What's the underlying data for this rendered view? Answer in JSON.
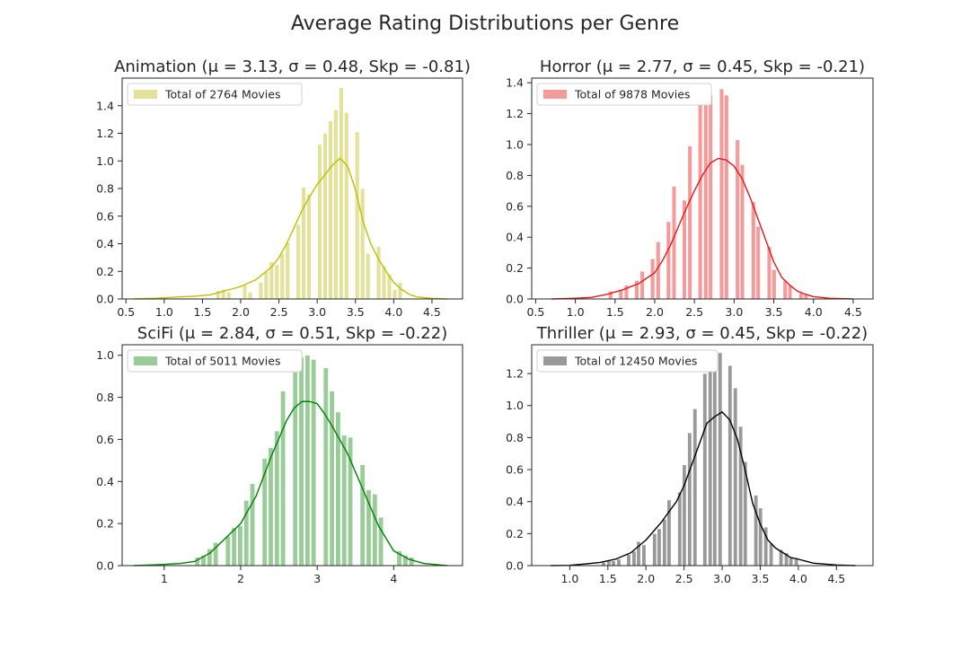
{
  "figure": {
    "title": "Average Rating Distributions per Genre"
  },
  "chart_data": [
    {
      "type": "bar",
      "title": "Animation (μ = 3.13, σ = 0.48, Skp = -0.81)",
      "legend": "Total of 2764 Movies",
      "color": "#bfbf00",
      "bar_color": "#e2e29a",
      "xlim": [
        0.45,
        4.9
      ],
      "ylim": [
        0,
        1.6
      ],
      "xticks": [
        0.5,
        1.0,
        1.5,
        2.0,
        2.5,
        3.0,
        3.5,
        4.0,
        4.5
      ],
      "xtick_labels": [
        "0.5",
        "1.0",
        "1.5",
        "2.0",
        "2.5",
        "3.0",
        "3.5",
        "4.0",
        "4.5"
      ],
      "yticks": [
        0.0,
        0.2,
        0.4,
        0.6,
        0.8,
        1.0,
        1.2,
        1.4
      ],
      "ytick_labels": [
        "0.0",
        "0.2",
        "0.4",
        "0.6",
        "0.8",
        "1.0",
        "1.2",
        "1.4"
      ],
      "bin_width": 0.07,
      "bins": [
        [
          1.71,
          0.06
        ],
        [
          1.78,
          0.07
        ],
        [
          1.85,
          0.05
        ],
        [
          2.06,
          0.1
        ],
        [
          2.13,
          0.05
        ],
        [
          2.27,
          0.12
        ],
        [
          2.34,
          0.2
        ],
        [
          2.41,
          0.27
        ],
        [
          2.48,
          0.25
        ],
        [
          2.55,
          0.33
        ],
        [
          2.62,
          0.41
        ],
        [
          2.76,
          0.54
        ],
        [
          2.83,
          0.81
        ],
        [
          2.9,
          0.76
        ],
        [
          3.04,
          1.12
        ],
        [
          3.11,
          1.2
        ],
        [
          3.18,
          1.29
        ],
        [
          3.25,
          1.37
        ],
        [
          3.32,
          1.53
        ],
        [
          3.39,
          1.35
        ],
        [
          3.53,
          1.21
        ],
        [
          3.6,
          0.8
        ],
        [
          3.67,
          0.33
        ],
        [
          3.81,
          0.38
        ],
        [
          3.88,
          0.24
        ],
        [
          3.95,
          0.18
        ],
        [
          4.02,
          0.07
        ],
        [
          4.09,
          0.12
        ]
      ],
      "kde_x": [
        0.6,
        0.9,
        1.2,
        1.4,
        1.6,
        1.8,
        2.0,
        2.2,
        2.4,
        2.5,
        2.6,
        2.7,
        2.8,
        2.9,
        3.0,
        3.1,
        3.2,
        3.3,
        3.4,
        3.5,
        3.6,
        3.7,
        3.8,
        3.9,
        4.0,
        4.1,
        4.2,
        4.3,
        4.5,
        4.7
      ],
      "kde_y": [
        0.0,
        0.005,
        0.015,
        0.02,
        0.03,
        0.06,
        0.09,
        0.14,
        0.23,
        0.3,
        0.4,
        0.52,
        0.64,
        0.74,
        0.83,
        0.9,
        0.97,
        1.02,
        0.96,
        0.79,
        0.56,
        0.4,
        0.29,
        0.2,
        0.12,
        0.07,
        0.035,
        0.015,
        0.004,
        0.0
      ]
    },
    {
      "type": "bar",
      "title": "Horror (μ = 2.77, σ = 0.45, Skp = -0.21)",
      "legend": "Total of 9878 Movies",
      "color": "#e41a1c",
      "bar_color": "#f59a9a",
      "xlim": [
        0.45,
        4.75
      ],
      "ylim": [
        0,
        1.43
      ],
      "xticks": [
        0.5,
        1.0,
        1.5,
        2.0,
        2.5,
        3.0,
        3.5,
        4.0,
        4.5
      ],
      "xtick_labels": [
        "0.5",
        "1.0",
        "1.5",
        "2.0",
        "2.5",
        "3.0",
        "3.5",
        "4.0",
        "4.5"
      ],
      "yticks": [
        0.0,
        0.2,
        0.4,
        0.6,
        0.8,
        1.0,
        1.2,
        1.4
      ],
      "ytick_labels": [
        "0.0",
        "0.2",
        "0.4",
        "0.6",
        "0.8",
        "1.0",
        "1.2",
        "1.4"
      ],
      "bin_width": 0.0667,
      "bins": [
        [
          1.45,
          0.05
        ],
        [
          1.58,
          0.06
        ],
        [
          1.65,
          0.09
        ],
        [
          1.78,
          0.12
        ],
        [
          1.85,
          0.18
        ],
        [
          1.98,
          0.26
        ],
        [
          2.05,
          0.37
        ],
        [
          2.18,
          0.5
        ],
        [
          2.25,
          0.73
        ],
        [
          2.38,
          0.64
        ],
        [
          2.45,
          0.99
        ],
        [
          2.58,
          1.29
        ],
        [
          2.65,
          1.36
        ],
        [
          2.71,
          1.32
        ],
        [
          2.85,
          1.36
        ],
        [
          2.91,
          1.32
        ],
        [
          3.05,
          1.03
        ],
        [
          3.11,
          0.87
        ],
        [
          3.25,
          0.63
        ],
        [
          3.31,
          0.47
        ],
        [
          3.45,
          0.34
        ],
        [
          3.51,
          0.19
        ],
        [
          3.65,
          0.12
        ],
        [
          3.71,
          0.09
        ],
        [
          3.85,
          0.04
        ],
        [
          3.91,
          0.03
        ]
      ],
      "kde_x": [
        0.7,
        1.0,
        1.2,
        1.4,
        1.6,
        1.8,
        2.0,
        2.1,
        2.2,
        2.3,
        2.4,
        2.5,
        2.6,
        2.7,
        2.8,
        2.9,
        3.0,
        3.1,
        3.2,
        3.3,
        3.4,
        3.5,
        3.6,
        3.7,
        3.8,
        3.9,
        4.0,
        4.2,
        4.5
      ],
      "kde_y": [
        0.0,
        0.005,
        0.01,
        0.03,
        0.06,
        0.1,
        0.17,
        0.25,
        0.35,
        0.47,
        0.59,
        0.7,
        0.8,
        0.88,
        0.91,
        0.9,
        0.86,
        0.78,
        0.66,
        0.52,
        0.38,
        0.24,
        0.14,
        0.09,
        0.05,
        0.03,
        0.015,
        0.005,
        0.0
      ]
    },
    {
      "type": "bar",
      "title": "SciFi (μ = 2.84, σ = 0.51, Skp = -0.22)",
      "legend": "Total of 5011 Movies",
      "color": "#008000",
      "bar_color": "#99cc99",
      "xlim": [
        0.45,
        4.9
      ],
      "ylim": [
        0,
        1.05
      ],
      "xticks": [
        1,
        2,
        3,
        4
      ],
      "xtick_labels": [
        "1",
        "2",
        "3",
        "4"
      ],
      "yticks": [
        0.0,
        0.2,
        0.4,
        0.6,
        0.8,
        1.0
      ],
      "ytick_labels": [
        "0.0",
        "0.2",
        "0.4",
        "0.6",
        "0.8",
        "1.0"
      ],
      "bin_width": 0.078,
      "bins": [
        [
          1.44,
          0.04
        ],
        [
          1.52,
          0.05
        ],
        [
          1.6,
          0.08
        ],
        [
          1.68,
          0.11
        ],
        [
          1.84,
          0.14
        ],
        [
          1.92,
          0.18
        ],
        [
          2.0,
          0.19
        ],
        [
          2.08,
          0.31
        ],
        [
          2.16,
          0.39
        ],
        [
          2.32,
          0.51
        ],
        [
          2.4,
          0.56
        ],
        [
          2.48,
          0.64
        ],
        [
          2.56,
          0.83
        ],
        [
          2.72,
          0.92
        ],
        [
          2.8,
          0.99
        ],
        [
          2.88,
          1.0
        ],
        [
          2.96,
          0.98
        ],
        [
          3.12,
          0.94
        ],
        [
          3.2,
          0.83
        ],
        [
          3.28,
          0.73
        ],
        [
          3.36,
          0.62
        ],
        [
          3.44,
          0.61
        ],
        [
          3.6,
          0.48
        ],
        [
          3.68,
          0.36
        ],
        [
          3.76,
          0.34
        ],
        [
          3.84,
          0.23
        ],
        [
          4.08,
          0.07
        ],
        [
          4.16,
          0.05
        ],
        [
          4.24,
          0.04
        ]
      ],
      "kde_x": [
        0.6,
        0.9,
        1.2,
        1.4,
        1.6,
        1.8,
        2.0,
        2.2,
        2.4,
        2.6,
        2.7,
        2.8,
        2.9,
        3.0,
        3.1,
        3.2,
        3.4,
        3.6,
        3.8,
        4.0,
        4.2,
        4.4,
        4.7
      ],
      "kde_y": [
        0.0,
        0.004,
        0.01,
        0.02,
        0.06,
        0.13,
        0.2,
        0.33,
        0.52,
        0.69,
        0.75,
        0.78,
        0.78,
        0.77,
        0.72,
        0.66,
        0.53,
        0.36,
        0.19,
        0.07,
        0.03,
        0.01,
        0.0
      ]
    },
    {
      "type": "bar",
      "title": "Thriller (μ = 2.93, σ = 0.45, Skp = -0.22)",
      "legend": "Total of 12450 Movies",
      "color": "#000000",
      "bar_color": "#999999",
      "xlim": [
        0.5,
        4.98
      ],
      "ylim": [
        0,
        1.38
      ],
      "xticks": [
        1.0,
        1.5,
        2.0,
        2.5,
        3.0,
        3.5,
        4.0,
        4.5
      ],
      "xtick_labels": [
        "1.0",
        "1.5",
        "2.0",
        "2.5",
        "3.0",
        "3.5",
        "4.0",
        "4.5"
      ],
      "yticks": [
        0.0,
        0.2,
        0.4,
        0.6,
        0.8,
        1.0,
        1.2
      ],
      "ytick_labels": [
        "0.0",
        "0.2",
        "0.4",
        "0.6",
        "0.8",
        "1.0",
        "1.2"
      ],
      "bin_width": 0.0667,
      "bins": [
        [
          1.45,
          0.02
        ],
        [
          1.52,
          0.03
        ],
        [
          1.58,
          0.03
        ],
        [
          1.65,
          0.04
        ],
        [
          1.78,
          0.07
        ],
        [
          1.85,
          0.09
        ],
        [
          1.91,
          0.15
        ],
        [
          1.98,
          0.13
        ],
        [
          2.12,
          0.2
        ],
        [
          2.18,
          0.23
        ],
        [
          2.25,
          0.29
        ],
        [
          2.31,
          0.41
        ],
        [
          2.45,
          0.46
        ],
        [
          2.51,
          0.63
        ],
        [
          2.58,
          0.83
        ],
        [
          2.65,
          0.98
        ],
        [
          2.78,
          1.2
        ],
        [
          2.85,
          1.25
        ],
        [
          2.91,
          1.32
        ],
        [
          2.98,
          1.33
        ],
        [
          3.11,
          1.25
        ],
        [
          3.18,
          1.11
        ],
        [
          3.25,
          0.87
        ],
        [
          3.31,
          0.65
        ],
        [
          3.45,
          0.44
        ],
        [
          3.51,
          0.36
        ],
        [
          3.58,
          0.24
        ],
        [
          3.65,
          0.14
        ],
        [
          3.78,
          0.1
        ],
        [
          3.85,
          0.08
        ],
        [
          3.91,
          0.05
        ],
        [
          3.98,
          0.04
        ]
      ],
      "kde_x": [
        0.75,
        1.0,
        1.2,
        1.4,
        1.6,
        1.8,
        2.0,
        2.2,
        2.4,
        2.5,
        2.6,
        2.7,
        2.8,
        2.9,
        3.0,
        3.1,
        3.2,
        3.3,
        3.4,
        3.5,
        3.6,
        3.7,
        3.8,
        3.9,
        4.0,
        4.2,
        4.5,
        4.75
      ],
      "kde_y": [
        0.0,
        0.002,
        0.01,
        0.02,
        0.04,
        0.08,
        0.16,
        0.27,
        0.4,
        0.5,
        0.63,
        0.76,
        0.89,
        0.93,
        0.96,
        0.91,
        0.79,
        0.6,
        0.39,
        0.26,
        0.16,
        0.11,
        0.08,
        0.05,
        0.04,
        0.015,
        0.004,
        0.0
      ]
    }
  ]
}
